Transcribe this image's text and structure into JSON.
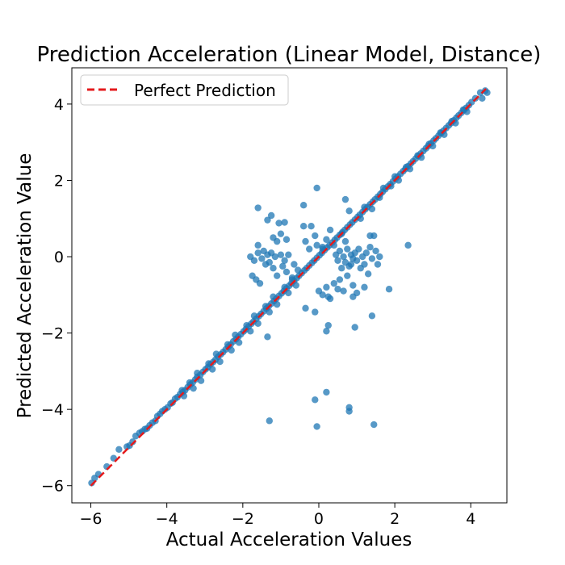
{
  "chart_data": {
    "type": "scatter",
    "title": "Prediction Acceleration (Linear Model, Distance)",
    "xlabel": "Actual Acceleration Values",
    "ylabel": "Predicted Acceleration Value",
    "xlim": [
      -6.5,
      4.95
    ],
    "ylim": [
      -6.45,
      4.95
    ],
    "xticks": [
      -6,
      -4,
      -2,
      0,
      2,
      4
    ],
    "yticks": [
      -6,
      -4,
      -2,
      0,
      2,
      4
    ],
    "xtick_labels": [
      "−6",
      "−4",
      "−2",
      "0",
      "2",
      "4"
    ],
    "ytick_labels": [
      "−6",
      "−4",
      "−2",
      "0",
      "2",
      "4"
    ],
    "grid": false,
    "legend_position": "top-left",
    "colors": {
      "points": "#1f77b4",
      "reference_line": "#e41a1c"
    },
    "reference_line": {
      "name": "Perfect Prediction",
      "style": "dashed",
      "x": [
        -6.0,
        4.4
      ],
      "y": [
        -6.0,
        4.4
      ]
    },
    "series": [
      {
        "points": [
          [
            -5.98,
            -5.93
          ],
          [
            -5.9,
            -5.8
          ],
          [
            -5.8,
            -5.7
          ],
          [
            -5.58,
            -5.5
          ],
          [
            -5.4,
            -5.28
          ],
          [
            -5.26,
            -5.05
          ],
          [
            -5.05,
            -4.98
          ],
          [
            -4.98,
            -4.95
          ],
          [
            -4.9,
            -4.85
          ],
          [
            -4.82,
            -4.7
          ],
          [
            -4.72,
            -4.62
          ],
          [
            -4.65,
            -4.58
          ],
          [
            -4.58,
            -4.52
          ],
          [
            -4.52,
            -4.5
          ],
          [
            -4.45,
            -4.42
          ],
          [
            -4.38,
            -4.35
          ],
          [
            -4.3,
            -4.3
          ],
          [
            -4.25,
            -4.18
          ],
          [
            -4.18,
            -4.12
          ],
          [
            -4.12,
            -4.05
          ],
          [
            -4.05,
            -4.0
          ],
          [
            -3.98,
            -3.95
          ],
          [
            -3.9,
            -3.85
          ],
          [
            -3.85,
            -3.82
          ],
          [
            -3.78,
            -3.72
          ],
          [
            -3.72,
            -3.68
          ],
          [
            -3.65,
            -3.6
          ],
          [
            -3.58,
            -3.55
          ],
          [
            -3.52,
            -3.5
          ],
          [
            -3.45,
            -3.42
          ],
          [
            -3.38,
            -3.35
          ],
          [
            -3.32,
            -3.3
          ],
          [
            -3.25,
            -3.22
          ],
          [
            -3.2,
            -3.15
          ],
          [
            -3.12,
            -3.1
          ],
          [
            -3.05,
            -3.02
          ],
          [
            -2.98,
            -2.95
          ],
          [
            -2.92,
            -2.9
          ],
          [
            -2.85,
            -2.82
          ],
          [
            -2.78,
            -2.76
          ],
          [
            -2.72,
            -2.7
          ],
          [
            -2.65,
            -2.62
          ],
          [
            -2.58,
            -2.56
          ],
          [
            -2.52,
            -2.5
          ],
          [
            -2.45,
            -2.43
          ],
          [
            -2.38,
            -2.36
          ],
          [
            -2.32,
            -2.3
          ],
          [
            -2.25,
            -2.22
          ],
          [
            -2.18,
            -2.16
          ],
          [
            -2.12,
            -2.1
          ],
          [
            -2.05,
            -2.03
          ],
          [
            -1.98,
            -1.96
          ],
          [
            -1.92,
            -1.9
          ],
          [
            -1.85,
            -1.83
          ],
          [
            -1.78,
            -1.76
          ],
          [
            -1.72,
            -1.7
          ],
          [
            -1.65,
            -1.63
          ],
          [
            -1.58,
            -1.56
          ],
          [
            -1.52,
            -1.5
          ],
          [
            -1.45,
            -1.43
          ],
          [
            -1.38,
            -1.36
          ],
          [
            -1.32,
            -1.3
          ],
          [
            -1.25,
            -1.23
          ],
          [
            -1.18,
            -1.16
          ],
          [
            -1.12,
            -1.1
          ],
          [
            -1.05,
            -1.03
          ],
          [
            -0.98,
            -0.96
          ],
          [
            -0.92,
            -0.9
          ],
          [
            -0.85,
            -0.83
          ],
          [
            -0.78,
            -0.76
          ],
          [
            -0.72,
            -0.7
          ],
          [
            -0.65,
            -0.63
          ],
          [
            -0.58,
            -0.56
          ],
          [
            -0.52,
            -0.5
          ],
          [
            -0.45,
            -0.43
          ],
          [
            -0.38,
            -0.36
          ],
          [
            -0.32,
            -0.3
          ],
          [
            -0.25,
            -0.23
          ],
          [
            -0.18,
            -0.16
          ],
          [
            -0.12,
            -0.1
          ],
          [
            -0.05,
            -0.03
          ],
          [
            0.02,
            0.04
          ],
          [
            0.08,
            0.1
          ],
          [
            0.15,
            0.17
          ],
          [
            0.22,
            0.24
          ],
          [
            0.28,
            0.3
          ],
          [
            0.35,
            0.37
          ],
          [
            0.42,
            0.44
          ],
          [
            0.48,
            0.5
          ],
          [
            0.55,
            0.57
          ],
          [
            0.62,
            0.64
          ],
          [
            0.68,
            0.7
          ],
          [
            0.75,
            0.77
          ],
          [
            0.82,
            0.84
          ],
          [
            0.88,
            0.9
          ],
          [
            0.95,
            0.97
          ],
          [
            1.02,
            1.04
          ],
          [
            1.08,
            1.1
          ],
          [
            1.15,
            1.17
          ],
          [
            1.22,
            1.24
          ],
          [
            1.28,
            1.3
          ],
          [
            1.35,
            1.37
          ],
          [
            1.42,
            1.44
          ],
          [
            1.48,
            1.5
          ],
          [
            1.55,
            1.57
          ],
          [
            1.62,
            1.64
          ],
          [
            1.68,
            1.7
          ],
          [
            1.75,
            1.77
          ],
          [
            1.82,
            1.84
          ],
          [
            1.88,
            1.9
          ],
          [
            1.95,
            1.97
          ],
          [
            2.02,
            2.04
          ],
          [
            2.08,
            2.1
          ],
          [
            2.15,
            2.17
          ],
          [
            2.22,
            2.24
          ],
          [
            2.28,
            2.3
          ],
          [
            2.35,
            2.37
          ],
          [
            2.42,
            2.44
          ],
          [
            2.48,
            2.5
          ],
          [
            2.55,
            2.57
          ],
          [
            2.62,
            2.64
          ],
          [
            2.68,
            2.7
          ],
          [
            2.75,
            2.77
          ],
          [
            2.82,
            2.84
          ],
          [
            2.88,
            2.9
          ],
          [
            2.95,
            2.97
          ],
          [
            3.02,
            3.04
          ],
          [
            3.08,
            3.1
          ],
          [
            3.15,
            3.17
          ],
          [
            3.22,
            3.24
          ],
          [
            3.28,
            3.3
          ],
          [
            3.35,
            3.37
          ],
          [
            3.42,
            3.44
          ],
          [
            3.48,
            3.5
          ],
          [
            3.55,
            3.57
          ],
          [
            3.62,
            3.64
          ],
          [
            3.68,
            3.7
          ],
          [
            3.75,
            3.77
          ],
          [
            3.82,
            3.84
          ],
          [
            3.88,
            3.9
          ],
          [
            3.95,
            3.97
          ],
          [
            4.02,
            4.05
          ],
          [
            4.12,
            4.15
          ],
          [
            4.25,
            4.3
          ],
          [
            4.38,
            4.35
          ],
          [
            4.43,
            4.3
          ],
          [
            4.3,
            4.15
          ],
          [
            -3.6,
            -3.5
          ],
          [
            -3.55,
            -3.65
          ],
          [
            -3.4,
            -3.3
          ],
          [
            -3.3,
            -3.45
          ],
          [
            -3.2,
            -3.05
          ],
          [
            -3.1,
            -3.25
          ],
          [
            -2.9,
            -2.8
          ],
          [
            -2.8,
            -2.95
          ],
          [
            -2.7,
            -2.55
          ],
          [
            -2.6,
            -2.75
          ],
          [
            -2.4,
            -2.3
          ],
          [
            -2.3,
            -2.45
          ],
          [
            -2.2,
            -2.05
          ],
          [
            -2.1,
            -2.25
          ],
          [
            -1.9,
            -1.8
          ],
          [
            -1.8,
            -1.95
          ],
          [
            -1.7,
            -1.55
          ],
          [
            -1.6,
            -1.75
          ],
          [
            -1.4,
            -1.3
          ],
          [
            -1.3,
            -1.45
          ],
          [
            -1.2,
            -1.05
          ],
          [
            -1.1,
            -1.25
          ],
          [
            -0.9,
            -0.8
          ],
          [
            -0.8,
            -0.95
          ],
          [
            -0.7,
            -0.55
          ],
          [
            -0.6,
            -0.75
          ],
          [
            1.1,
            1.0
          ],
          [
            1.2,
            1.3
          ],
          [
            1.4,
            1.25
          ],
          [
            1.6,
            1.55
          ],
          [
            1.7,
            1.8
          ],
          [
            1.9,
            1.85
          ],
          [
            2.0,
            2.1
          ],
          [
            2.1,
            2.0
          ],
          [
            2.3,
            2.35
          ],
          [
            2.4,
            2.3
          ],
          [
            2.6,
            2.65
          ],
          [
            2.7,
            2.6
          ],
          [
            2.9,
            2.95
          ],
          [
            3.0,
            2.9
          ],
          [
            3.2,
            3.25
          ],
          [
            3.3,
            3.2
          ],
          [
            3.5,
            3.55
          ],
          [
            3.6,
            3.5
          ],
          [
            3.8,
            3.85
          ],
          [
            3.9,
            3.8
          ],
          [
            -1.8,
            0.0
          ],
          [
            -1.7,
            -0.1
          ],
          [
            -1.6,
            0.1
          ],
          [
            -1.5,
            -0.05
          ],
          [
            -1.45,
            0.15
          ],
          [
            -1.4,
            -0.2
          ],
          [
            -1.35,
            0.05
          ],
          [
            -1.3,
            -0.15
          ],
          [
            -1.25,
            0.1
          ],
          [
            -1.2,
            -0.3
          ],
          [
            -1.15,
            0.0
          ],
          [
            -1.1,
            -0.5
          ],
          [
            -1.0,
            0.05
          ],
          [
            -0.95,
            -0.25
          ],
          [
            -0.9,
            -0.1
          ],
          [
            -0.85,
            -0.4
          ],
          [
            -0.8,
            0.05
          ],
          [
            -0.7,
            -0.6
          ],
          [
            -0.65,
            -0.2
          ],
          [
            -0.55,
            -0.35
          ],
          [
            -1.75,
            -0.5
          ],
          [
            -1.65,
            -0.6
          ],
          [
            -1.55,
            -0.7
          ],
          [
            -1.2,
            0.5
          ],
          [
            -1.0,
            0.6
          ],
          [
            -0.85,
            0.45
          ],
          [
            -1.6,
            0.3
          ],
          [
            -0.2,
            0.8
          ],
          [
            -0.1,
            0.55
          ],
          [
            -0.05,
            0.3
          ],
          [
            0.1,
            0.2
          ],
          [
            0.2,
            0.45
          ],
          [
            0.3,
            0.7
          ],
          [
            0.4,
            0.3
          ],
          [
            0.45,
            0.05
          ],
          [
            0.5,
            -0.1
          ],
          [
            0.55,
            0.15
          ],
          [
            0.6,
            -0.3
          ],
          [
            0.65,
            0.0
          ],
          [
            0.7,
            -0.15
          ],
          [
            0.75,
            0.2
          ],
          [
            0.8,
            -0.25
          ],
          [
            0.85,
            0.05
          ],
          [
            0.9,
            -0.05
          ],
          [
            0.95,
            0.1
          ],
          [
            1.0,
            -0.1
          ],
          [
            1.05,
            0.2
          ],
          [
            1.1,
            -0.3
          ],
          [
            1.15,
            0.0
          ],
          [
            1.2,
            -0.2
          ],
          [
            1.25,
            0.1
          ],
          [
            1.3,
            -0.45
          ],
          [
            1.35,
            0.25
          ],
          [
            1.4,
            -0.05
          ],
          [
            1.5,
            0.15
          ],
          [
            1.55,
            -0.2
          ],
          [
            1.6,
            0.0
          ],
          [
            0.0,
            -0.9
          ],
          [
            0.1,
            -1.0
          ],
          [
            0.2,
            -0.8
          ],
          [
            0.3,
            -1.1
          ],
          [
            0.4,
            -0.7
          ],
          [
            0.5,
            -0.85
          ],
          [
            0.55,
            -0.6
          ],
          [
            0.65,
            -0.9
          ],
          [
            0.75,
            -0.5
          ],
          [
            0.9,
            -0.75
          ],
          [
            1.2,
            -0.8
          ],
          [
            1.45,
            0.55
          ],
          [
            0.85,
            -0.2
          ],
          [
            0.6,
            0.6
          ],
          [
            0.7,
            0.4
          ],
          [
            -1.6,
            1.28
          ],
          [
            -1.35,
            0.96
          ],
          [
            -1.25,
            1.08
          ],
          [
            -1.05,
            0.88
          ],
          [
            -0.4,
            1.35
          ],
          [
            -0.4,
            0.8
          ],
          [
            -0.35,
            0.4
          ],
          [
            -0.25,
            0.2
          ],
          [
            -0.05,
            1.8
          ],
          [
            -1.1,
            0.4
          ],
          [
            -0.9,
            0.9
          ],
          [
            0.1,
            0.25
          ],
          [
            0.7,
            1.5
          ],
          [
            0.8,
            1.2
          ],
          [
            1.35,
            0.55
          ],
          [
            2.35,
            0.3
          ],
          [
            1.85,
            -0.85
          ],
          [
            -0.35,
            -1.35
          ],
          [
            -0.1,
            -1.45
          ],
          [
            0.25,
            -1.05
          ],
          [
            0.9,
            -1.05
          ],
          [
            1.0,
            -0.95
          ],
          [
            1.4,
            -1.55
          ],
          [
            -1.35,
            -2.1
          ],
          [
            0.25,
            -1.8
          ],
          [
            0.2,
            -1.95
          ],
          [
            0.95,
            -1.85
          ],
          [
            -0.1,
            -3.75
          ],
          [
            0.2,
            -3.55
          ],
          [
            0.8,
            -3.95
          ],
          [
            0.8,
            -4.05
          ],
          [
            -0.05,
            -4.45
          ],
          [
            -1.3,
            -4.3
          ],
          [
            1.45,
            -4.4
          ]
        ]
      }
    ]
  }
}
